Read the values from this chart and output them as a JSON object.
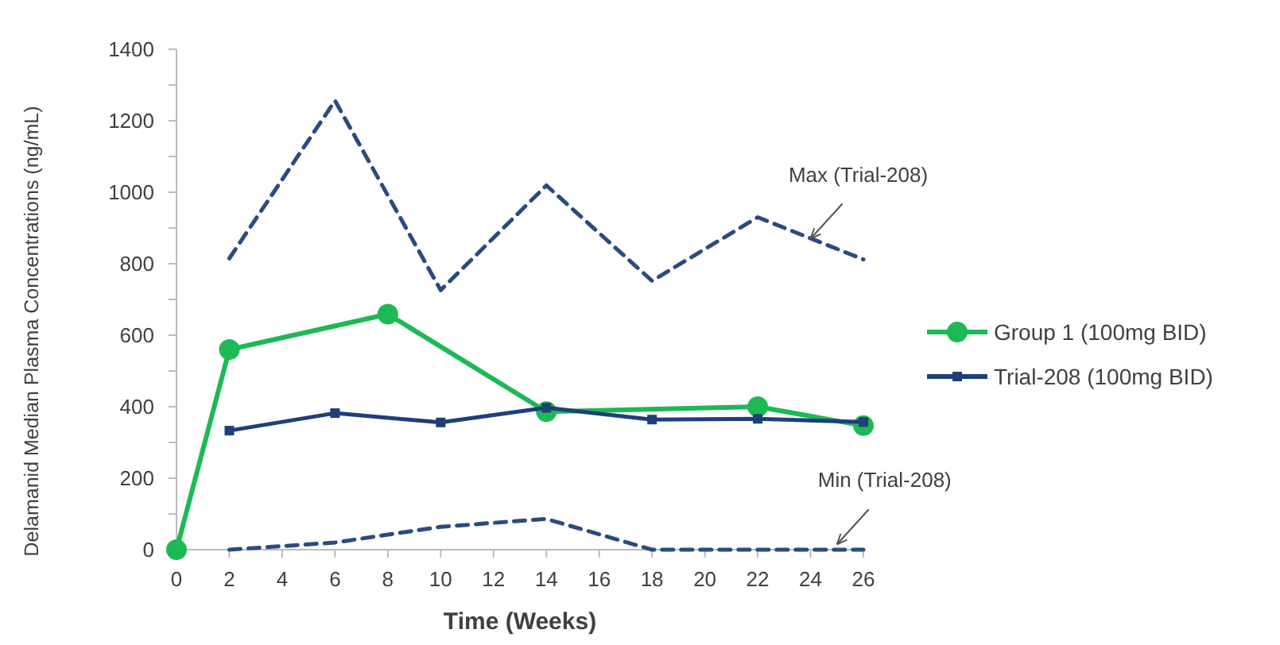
{
  "chart_data": {
    "type": "line",
    "xlabel": "Time (Weeks)",
    "ylabel": "Delamanid Median Plasma Concentrations (ng/mL)",
    "xlim": [
      0,
      26
    ],
    "xticks": [
      0,
      2,
      4,
      6,
      8,
      10,
      12,
      14,
      16,
      18,
      20,
      22,
      24,
      26
    ],
    "ylim": [
      0,
      1400
    ],
    "yticks": [
      0,
      {
        "value": 100,
        "label": null
      },
      200,
      {
        "value": 300,
        "label": null
      },
      400,
      {
        "value": 500,
        "label": null
      },
      600,
      {
        "value": 700,
        "label": null
      },
      800,
      {
        "value": 900,
        "label": null
      },
      1000,
      {
        "value": 1100,
        "label": null
      },
      1200,
      {
        "value": 1300,
        "label": null
      },
      1400
    ],
    "grid": false,
    "legend": "right",
    "series": [
      {
        "name": "Group 1 (100mg BID)",
        "color": "#1db954",
        "x": [
          0,
          2,
          8,
          14,
          22,
          26
        ],
        "values": [
          0,
          560,
          659,
          386,
          400,
          347
        ],
        "marker": "circle",
        "line_style": "solid"
      },
      {
        "name": "Trial-208 (100mg BID)",
        "color": "#1f3f7a",
        "x": [
          2,
          6,
          10,
          14,
          18,
          22,
          26
        ],
        "values": [
          333,
          382,
          356,
          397,
          364,
          366,
          357
        ],
        "marker": "square",
        "line_style": "solid"
      },
      {
        "color": "#2b4a80",
        "x": [
          2,
          6,
          10,
          14,
          18,
          22,
          26
        ],
        "values": [
          815,
          1256,
          726,
          1019,
          752,
          930,
          812
        ],
        "marker": "none",
        "line_style": "dashed"
      },
      {
        "color": "#2b4a80",
        "x": [
          2,
          6,
          10,
          14,
          18,
          22,
          26
        ],
        "values": [
          0,
          20,
          64,
          86,
          0,
          0,
          0
        ],
        "marker": "none",
        "line_style": "dashed"
      }
    ],
    "annotations": [
      {
        "text": "Max (Trial-208)",
        "x": 24,
        "y": 870
      },
      {
        "text": "Min (Trial-208)",
        "x": 25,
        "y": 15
      }
    ]
  }
}
